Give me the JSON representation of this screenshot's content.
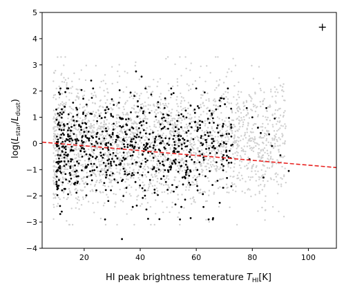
{
  "chart_data": {
    "type": "scatter",
    "xlabel": {
      "prefix": "HI peak brightness temerature ",
      "var": "T",
      "var_sub": "HI",
      "suffix": "[K]"
    },
    "ylabel": {
      "prefix": "log(",
      "num_var": "L",
      "num_sub": "star",
      "slash": "/",
      "den_var": "L",
      "den_sub": "dust",
      "suffix": ")"
    },
    "xlim": [
      5,
      110
    ],
    "ylim": [
      -4,
      5
    ],
    "x_ticks": [
      20,
      40,
      60,
      80,
      100
    ],
    "y_ticks": [
      -4,
      -3,
      -2,
      -1,
      0,
      1,
      2,
      3,
      4,
      5
    ],
    "grid": false,
    "colors": {
      "background_points": "#cfcfcf",
      "highlight_points": "#000000",
      "fit_line": "#e8201e"
    },
    "series": [
      {
        "role": "background",
        "generated": {
          "count": 2600,
          "seed": 7,
          "x_range": [
            9,
            92
          ],
          "y_mean": 0.0,
          "y_std": 1.15,
          "y_clip": [
            -3.1,
            3.3
          ]
        }
      },
      {
        "role": "highlight",
        "generated": {
          "count": 720,
          "seed": 23,
          "x_range": [
            10,
            73
          ],
          "y_mean": -0.25,
          "y_std": 0.95,
          "y_clip": [
            -2.9,
            2.1
          ]
        },
        "extra_points": [
          [
            33.5,
            -3.65
          ],
          [
            38.5,
            2.75
          ],
          [
            40.5,
            2.55
          ],
          [
            22.5,
            2.4
          ],
          [
            11,
            1.95
          ],
          [
            12,
            -2.6
          ],
          [
            13,
            1.4
          ],
          [
            60,
            2.1
          ],
          [
            63,
            1.95
          ],
          [
            58,
            -2.85
          ],
          [
            66,
            -2.85
          ],
          [
            78,
            1.35
          ],
          [
            80,
            1.0
          ],
          [
            82,
            0.6
          ],
          [
            83,
            0.4
          ],
          [
            85,
            1.35
          ],
          [
            86,
            0.35
          ],
          [
            87,
            -0.1
          ],
          [
            88,
            0.95
          ],
          [
            90,
            -0.45
          ],
          [
            93,
            -1.05
          ],
          [
            84,
            -1.3
          ],
          [
            79,
            -0.6
          ]
        ]
      }
    ],
    "fit_line": {
      "x": [
        5,
        110
      ],
      "y": [
        0.05,
        -0.92
      ],
      "style": "dashed"
    },
    "annotation": {
      "text": "+",
      "x": 105,
      "y": 4.45
    }
  }
}
